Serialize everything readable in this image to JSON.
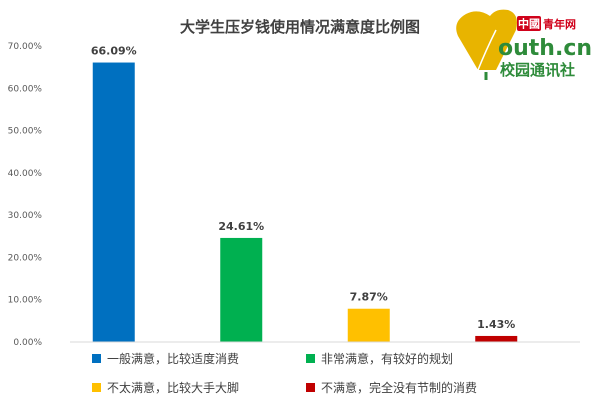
{
  "chart_data": {
    "type": "bar",
    "title": "大学生压岁钱使用情况满意度比例图",
    "categories": [
      "一般满意，比较适度消费",
      "非常满意，有较好的规划",
      "不太满意，比较大手大脚",
      "不满意，完全没有节制的消费"
    ],
    "values": [
      66.09,
      24.61,
      7.87,
      1.43
    ],
    "value_labels": [
      "66.09%",
      "24.61%",
      "7.87%",
      "1.43%"
    ],
    "colors": [
      "#0070C0",
      "#00B050",
      "#FFC000",
      "#C00000"
    ],
    "ylim": [
      0,
      70
    ],
    "yticks": [
      0,
      10,
      20,
      30,
      40,
      50,
      60,
      70
    ],
    "ytick_labels": [
      "0.00%",
      "10.00%",
      "20.00%",
      "30.00%",
      "40.00%",
      "50.00%",
      "60.00%",
      "70.00%"
    ],
    "xlabel": "",
    "ylabel": "",
    "grid": false,
    "legend_position": "bottom"
  },
  "logo": {
    "brand_cn": "中國",
    "brand_name": "青年网",
    "domain_text": "outh.cn",
    "campus_text": "校园通讯社",
    "colors": {
      "gold": "#E8B400",
      "green": "#2E8B3A",
      "red": "#D0021B"
    }
  }
}
